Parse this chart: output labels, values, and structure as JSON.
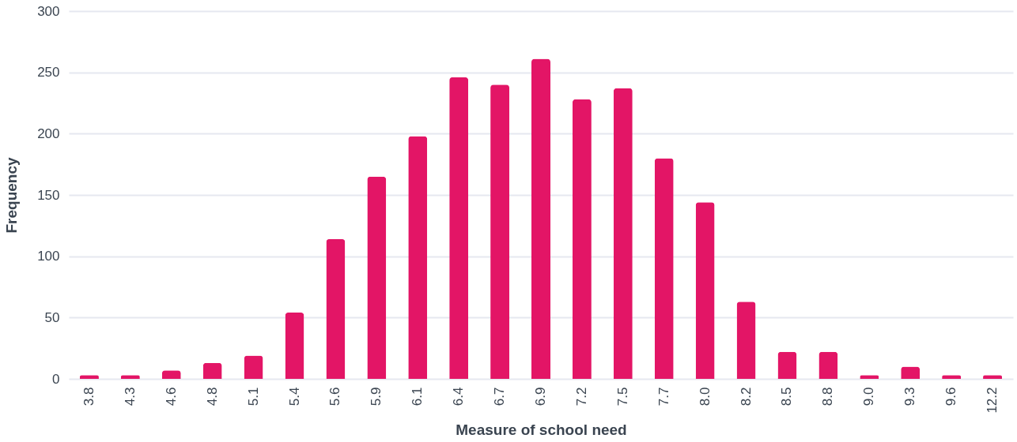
{
  "chart_data": {
    "type": "bar",
    "xlabel": "Measure of school need",
    "ylabel": "Frequency",
    "categories": [
      "3.8",
      "4.3",
      "4.6",
      "4.8",
      "5.1",
      "5.4",
      "5.6",
      "5.9",
      "6.1",
      "6.4",
      "6.7",
      "6.9",
      "7.2",
      "7.5",
      "7.7",
      "8.0",
      "8.2",
      "8.5",
      "8.8",
      "9.0",
      "9.3",
      "9.6",
      "12.2"
    ],
    "series": [
      {
        "color": "#e31566",
        "values": [
          3,
          3,
          7,
          13,
          19,
          54,
          114,
          165,
          198,
          246,
          240,
          261,
          228,
          237,
          180,
          144,
          63,
          22,
          22,
          3,
          10,
          3,
          3
        ]
      }
    ],
    "ylim": [
      0,
      300
    ],
    "yticks": [
      0,
      50,
      100,
      150,
      200,
      250,
      300
    ],
    "grid": "y",
    "legend": false
  }
}
